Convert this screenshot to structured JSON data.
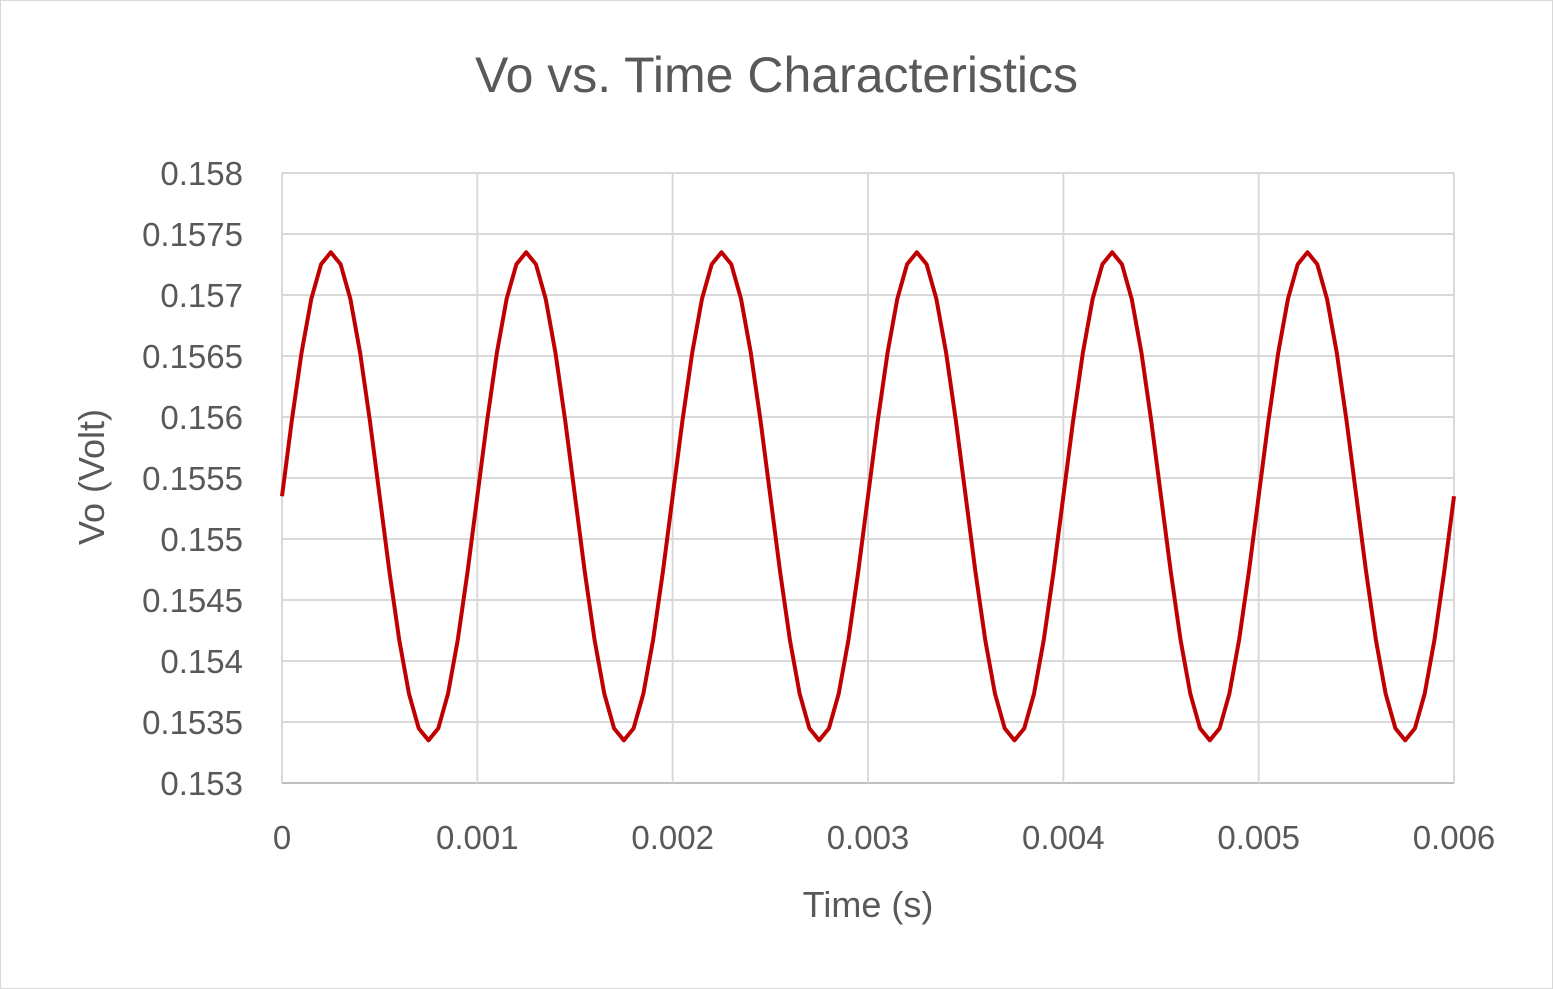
{
  "chart_data": {
    "type": "line",
    "title": "Vo vs. Time Characteristics",
    "xlabel": "Time (s)",
    "ylabel": "Vo (Volt)",
    "xlim": [
      0,
      0.006
    ],
    "ylim": [
      0.153,
      0.158
    ],
    "x_ticks": [
      "0",
      "0.001",
      "0.002",
      "0.003",
      "0.004",
      "0.005",
      "0.006"
    ],
    "y_ticks": [
      "0.153",
      "0.1535",
      "0.154",
      "0.1545",
      "0.155",
      "0.1555",
      "0.156",
      "0.1565",
      "0.157",
      "0.1575",
      "0.158"
    ],
    "grid": true,
    "legend": "none",
    "series": [
      {
        "color": "#c00000",
        "x_start": 0,
        "x_end": 0.006,
        "x_step": 5e-05,
        "y_formula": "0.15535 + 0.002 * sin(2*pi*1000*t)",
        "points": [
          [
            0,
            0.15535
          ],
          [
            5e-05,
            0.15597
          ],
          [
            0.0001,
            0.15653
          ],
          [
            0.00015,
            0.15697
          ],
          [
            0.0002,
            0.15725
          ],
          [
            0.00025,
            0.15735
          ],
          [
            0.0003,
            0.15725
          ],
          [
            0.00035,
            0.15697
          ],
          [
            0.0004,
            0.15653
          ],
          [
            0.00045,
            0.15597
          ],
          [
            0.0005,
            0.15535
          ],
          [
            0.00055,
            0.15473
          ],
          [
            0.0006,
            0.15417
          ],
          [
            0.00065,
            0.15373
          ],
          [
            0.0007,
            0.15345
          ],
          [
            0.00075,
            0.15335
          ],
          [
            0.0008,
            0.15345
          ],
          [
            0.00085,
            0.15373
          ],
          [
            0.0009,
            0.15417
          ],
          [
            0.00095,
            0.15473
          ],
          [
            0.001,
            0.15535
          ]
        ]
      }
    ]
  }
}
